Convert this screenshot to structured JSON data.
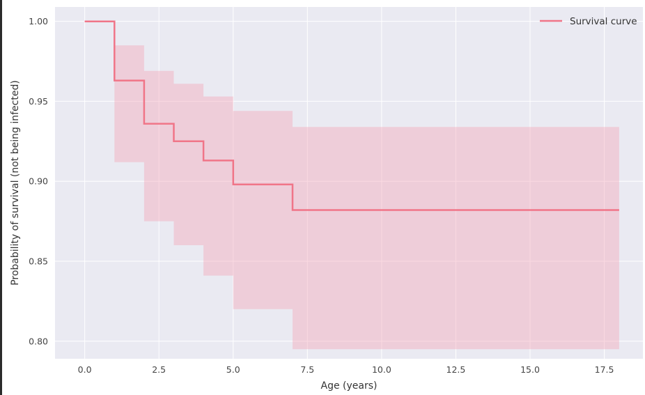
{
  "chart_data": {
    "type": "line",
    "step": true,
    "xlabel": "Age (years)",
    "ylabel": "Probability of survival (not being infected)",
    "xlim": [
      -1,
      18.8
    ],
    "ylim": [
      0.789,
      1.009
    ],
    "xticks": [
      0.0,
      2.5,
      5.0,
      7.5,
      10.0,
      12.5,
      15.0,
      17.5
    ],
    "xtick_labels": [
      "0.0",
      "2.5",
      "5.0",
      "7.5",
      "10.0",
      "12.5",
      "15.0",
      "17.5"
    ],
    "yticks": [
      0.8,
      0.85,
      0.9,
      0.95,
      1.0
    ],
    "ytick_labels": [
      "0.80",
      "0.85",
      "0.90",
      "0.95",
      "1.00"
    ],
    "grid": true,
    "legend_position": "top-right",
    "colors": {
      "plot_background": "#eaeaf2",
      "grid": "#ffffff",
      "line": "#f07588",
      "band": "#f2a4b8"
    },
    "series": [
      {
        "name": "Survival curve",
        "x": [
          0,
          1,
          2,
          3,
          4,
          5,
          7,
          18
        ],
        "y": [
          1.0,
          0.963,
          0.936,
          0.925,
          0.913,
          0.898,
          0.882,
          0.882
        ],
        "ci_lower": [
          1.0,
          0.912,
          0.875,
          0.86,
          0.841,
          0.82,
          0.795,
          0.795
        ],
        "ci_upper": [
          1.0,
          0.985,
          0.969,
          0.961,
          0.953,
          0.944,
          0.934,
          0.934
        ]
      }
    ]
  }
}
